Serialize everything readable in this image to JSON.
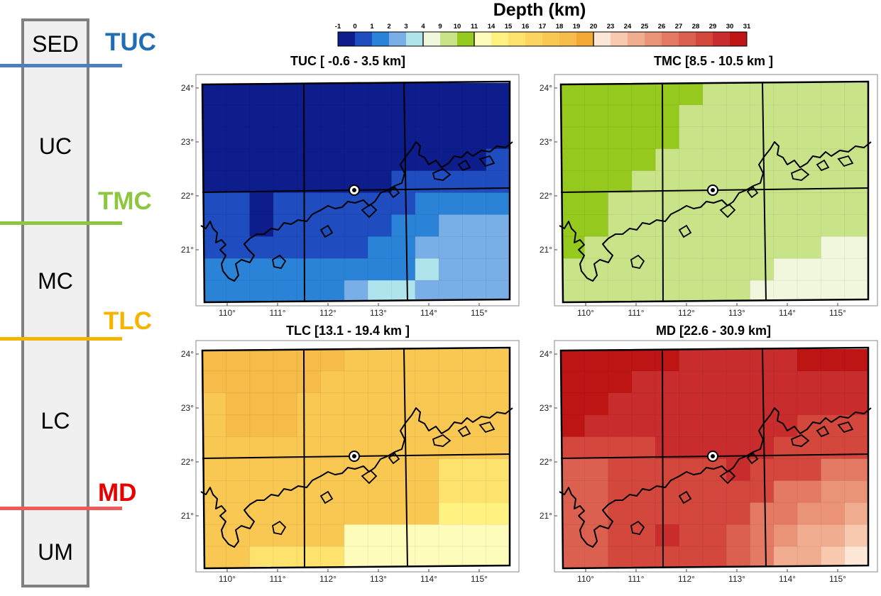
{
  "layers": {
    "labels": [
      "SED",
      "UC",
      "MC",
      "LC",
      "UM"
    ],
    "boundaries": [
      {
        "name": "TUC",
        "color": "#1f6db5",
        "line_color": "#4a7fc1"
      },
      {
        "name": "TMC",
        "color": "#8dc63f",
        "line_color": "#8dc63f"
      },
      {
        "name": "TLC",
        "color": "#f4b400",
        "line_color": "#f4b400"
      },
      {
        "name": "MD",
        "color": "#e60000",
        "line_color": "#f05a5a"
      }
    ]
  },
  "legend": {
    "title": "Depth (km)",
    "ticks": [
      "-1",
      "0",
      "1",
      "2",
      "3",
      "4",
      "9",
      "10",
      "11",
      "14",
      "15",
      "16",
      "17",
      "18",
      "19",
      "20",
      "23",
      "24",
      "25",
      "26",
      "27",
      "28",
      "29",
      "30",
      "31"
    ],
    "colors": [
      "#0d1d8c",
      "#1f4dbf",
      "#2b83d8",
      "#7aaee6",
      "#b0e4ec",
      "#f0f7dc",
      "#c9e488",
      "#95c91e",
      "#fefcbb",
      "#fff280",
      "#fde36e",
      "#fbd55f",
      "#f9c853",
      "#f6bb48",
      "#f3a936",
      "#fde8d8",
      "#f8c9ae",
      "#f1ad90",
      "#ea9377",
      "#e47a63",
      "#dc604f",
      "#d3473d",
      "#c82c2c",
      "#bd1414"
    ]
  },
  "map": {
    "lat_ticks": [
      "24°",
      "23°",
      "22°",
      "21°"
    ],
    "lon_ticks": [
      "110°",
      "111°",
      "112°",
      "113°",
      "114°",
      "115°"
    ],
    "station_marker": "circle-dot"
  },
  "panels": [
    {
      "id": "tuc",
      "title": "TUC [ -0.6 - 3.5 km]"
    },
    {
      "id": "tmc",
      "title": "TMC  [8.5 - 10.5 km ]"
    },
    {
      "id": "tlc",
      "title": "TLC [13.1 - 19.4 km ]"
    },
    {
      "id": "md",
      "title": "MD  [22.6 - 30.9 km]"
    }
  ]
}
